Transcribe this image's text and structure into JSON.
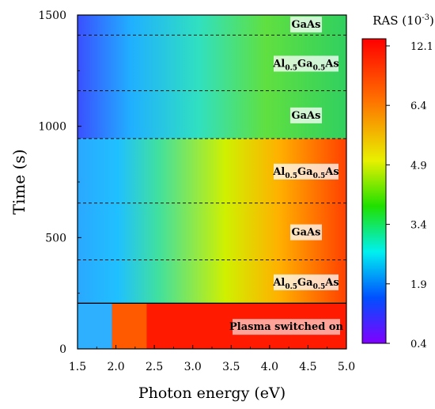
{
  "chart_data": {
    "type": "heatmap",
    "xlabel": "Photon energy (eV)",
    "ylabel": "Time (s)",
    "xlim": [
      1.5,
      5.0
    ],
    "ylim": [
      0,
      1500
    ],
    "x_ticks": [
      "1.5",
      "2.0",
      "2.5",
      "3.0",
      "3.5",
      "4.0",
      "4.5",
      "5.0"
    ],
    "y_ticks": [
      "0",
      "500",
      "1000",
      "1500"
    ],
    "colorbar": {
      "title": "RAS (10",
      "title_exp": "-3",
      "title_close": ")",
      "tick_labels": [
        "12.1",
        "6.4",
        "4.9",
        "3.4",
        "1.9",
        "0.4"
      ],
      "colors": [
        "#ff0000",
        "#ff8000",
        "#ffff00",
        "#00e000",
        "#00ffff",
        "#0050ff",
        "#8000ff"
      ]
    },
    "layers": [
      {
        "label_main": "Plasma switched on",
        "label_sub": "",
        "label_tail": "",
        "t_start": 0,
        "t_end": 205
      },
      {
        "label_main": "Al",
        "label_sub": "0.5",
        "label_mid": "Ga",
        "label_sub2": "0.5",
        "label_tail": "As",
        "t_start": 205,
        "t_end": 400
      },
      {
        "label_main": "GaAs",
        "label_sub": "",
        "label_tail": "",
        "t_start": 400,
        "t_end": 655
      },
      {
        "label_main": "Al",
        "label_sub": "0.5",
        "label_mid": "Ga",
        "label_sub2": "0.5",
        "label_tail": "As",
        "t_start": 655,
        "t_end": 945
      },
      {
        "label_main": "GaAs",
        "label_sub": "",
        "label_tail": "",
        "t_start": 945,
        "t_end": 1160
      },
      {
        "label_main": "Al",
        "label_sub": "0.5",
        "label_mid": "Ga",
        "label_sub2": "0.5",
        "label_tail": "As",
        "t_start": 1160,
        "t_end": 1410
      },
      {
        "label_main": "GaAs",
        "label_sub": "",
        "label_tail": "",
        "t_start": 1410,
        "t_end": 1500
      }
    ],
    "boundaries": [
      {
        "t": 205,
        "style": "solid"
      },
      {
        "t": 400,
        "style": "dashed"
      },
      {
        "t": 655,
        "style": "dashed"
      },
      {
        "t": 945,
        "style": "dashed"
      },
      {
        "t": 1160,
        "style": "dashed"
      },
      {
        "t": 1410,
        "style": "dashed"
      }
    ]
  }
}
